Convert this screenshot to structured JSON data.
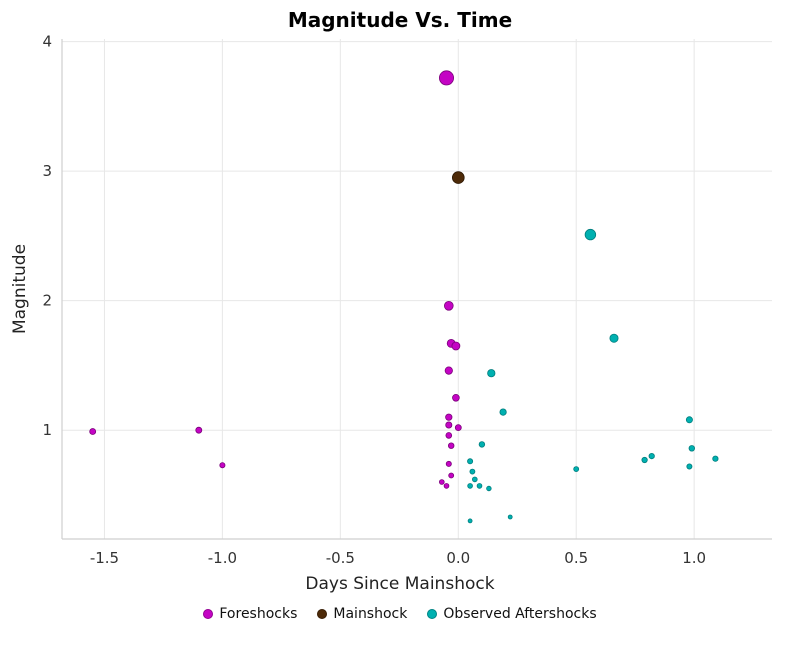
{
  "chart_data": {
    "type": "scatter",
    "title": "Magnitude Vs. Time",
    "xlabel": "Days Since Mainshock",
    "ylabel": "Magnitude",
    "xlim": [
      -1.68,
      1.33
    ],
    "ylim": [
      0.16,
      4.02
    ],
    "xticks": [
      -1.5,
      -1.0,
      -0.5,
      0.0,
      0.5,
      1.0
    ],
    "xtick_labels": [
      "-1.5",
      "-1.0",
      "-0.5",
      "0.0",
      "0.5",
      "1.0"
    ],
    "yticks": [
      1,
      2,
      3,
      4
    ],
    "ytick_labels": [
      "1",
      "2",
      "3",
      "4"
    ],
    "grid": true,
    "legend_position": "bottom",
    "marker_size_rule": "radius_px = 1.5 + 1.5 * magnitude",
    "series": [
      {
        "name": "Foreshocks",
        "color": "#c404c4",
        "stroke": "#7a027a",
        "points": [
          [
            -1.55,
            0.99
          ],
          [
            -1.1,
            1.0
          ],
          [
            -1.0,
            0.73
          ],
          [
            -0.05,
            3.72
          ],
          [
            -0.04,
            1.96
          ],
          [
            -0.03,
            1.67
          ],
          [
            -0.01,
            1.65
          ],
          [
            -0.04,
            1.46
          ],
          [
            -0.01,
            1.25
          ],
          [
            -0.04,
            1.1
          ],
          [
            -0.04,
            1.04
          ],
          [
            0.0,
            1.02
          ],
          [
            -0.04,
            0.96
          ],
          [
            -0.03,
            0.88
          ],
          [
            -0.04,
            0.74
          ],
          [
            -0.03,
            0.65
          ],
          [
            -0.07,
            0.6
          ],
          [
            -0.05,
            0.57
          ]
        ]
      },
      {
        "name": "Mainshock",
        "color": "#4d2a08",
        "stroke": "#2b1703",
        "points": [
          [
            0.0,
            2.95
          ]
        ]
      },
      {
        "name": "Observed Aftershocks",
        "color": "#00b0b0",
        "stroke": "#007d7d",
        "points": [
          [
            0.56,
            2.51
          ],
          [
            0.66,
            1.71
          ],
          [
            0.14,
            1.44
          ],
          [
            0.19,
            1.14
          ],
          [
            0.1,
            0.89
          ],
          [
            0.05,
            0.76
          ],
          [
            0.06,
            0.68
          ],
          [
            0.07,
            0.62
          ],
          [
            0.05,
            0.57
          ],
          [
            0.09,
            0.57
          ],
          [
            0.13,
            0.55
          ],
          [
            0.5,
            0.7
          ],
          [
            0.79,
            0.77
          ],
          [
            0.82,
            0.8
          ],
          [
            0.98,
            1.08
          ],
          [
            0.99,
            0.86
          ],
          [
            0.98,
            0.72
          ],
          [
            1.09,
            0.78
          ],
          [
            0.05,
            0.3
          ],
          [
            0.22,
            0.33
          ]
        ]
      }
    ]
  }
}
